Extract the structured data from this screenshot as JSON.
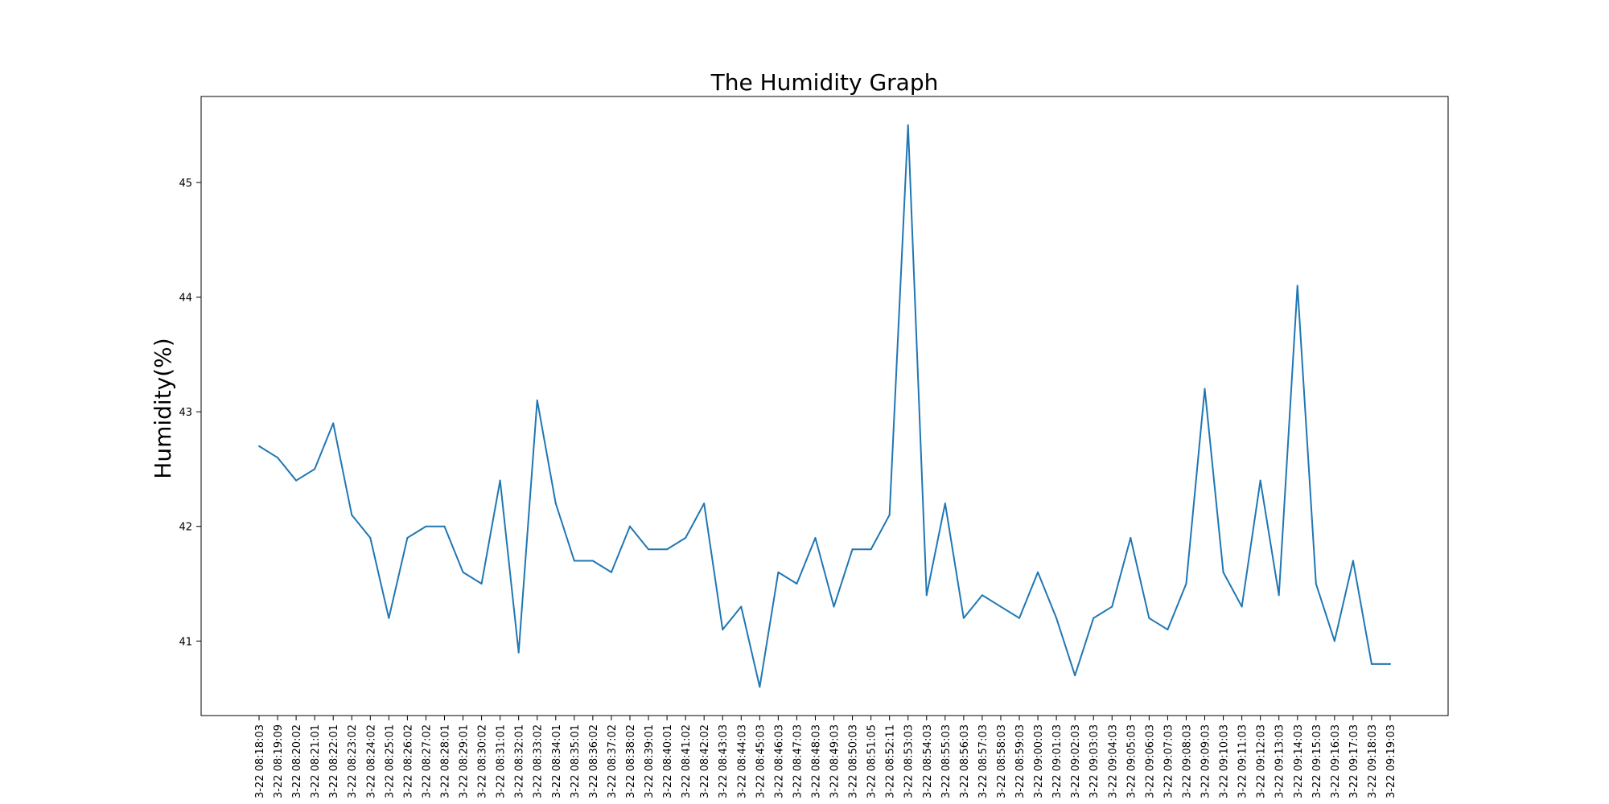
{
  "chart_data": {
    "type": "line",
    "title": "The Humidity Graph",
    "xlabel": "",
    "ylabel": "Humidity(%)",
    "ylim": [
      40.35,
      45.75
    ],
    "yticks": [
      41,
      42,
      43,
      44,
      45
    ],
    "grid": false,
    "legend": "none",
    "line_color": "#1f77b4",
    "x": [
      "3-22 08:18:03",
      "3-22 08:19:09",
      "3-22 08:20:02",
      "3-22 08:21:01",
      "3-22 08:22:01",
      "3-22 08:23:02",
      "3-22 08:24:02",
      "3-22 08:25:01",
      "3-22 08:26:02",
      "3-22 08:27:02",
      "3-22 08:28:01",
      "3-22 08:29:01",
      "3-22 08:30:02",
      "3-22 08:31:01",
      "3-22 08:32:01",
      "3-22 08:33:02",
      "3-22 08:34:01",
      "3-22 08:35:01",
      "3-22 08:36:02",
      "3-22 08:37:02",
      "3-22 08:38:02",
      "3-22 08:39:01",
      "3-22 08:40:01",
      "3-22 08:41:02",
      "3-22 08:42:02",
      "3-22 08:43:03",
      "3-22 08:44:03",
      "3-22 08:45:03",
      "3-22 08:46:03",
      "3-22 08:47:03",
      "3-22 08:48:03",
      "3-22 08:49:03",
      "3-22 08:50:03",
      "3-22 08:51:05",
      "3-22 08:52:11",
      "3-22 08:53:03",
      "3-22 08:54:03",
      "3-22 08:55:03",
      "3-22 08:56:03",
      "3-22 08:57:03",
      "3-22 08:58:03",
      "3-22 08:59:03",
      "3-22 09:00:03",
      "3-22 09:01:03",
      "3-22 09:02:03",
      "3-22 09:03:03",
      "3-22 09:04:03",
      "3-22 09:05:03",
      "3-22 09:06:03",
      "3-22 09:07:03",
      "3-22 09:08:03",
      "3-22 09:09:03",
      "3-22 09:10:03",
      "3-22 09:11:03",
      "3-22 09:12:03",
      "3-22 09:13:03",
      "3-22 09:14:03",
      "3-22 09:15:03",
      "3-22 09:16:03",
      "3-22 09:17:03",
      "3-22 09:18:03",
      "3-22 09:19:03"
    ],
    "values": [
      42.7,
      42.6,
      42.4,
      42.5,
      42.9,
      42.1,
      41.9,
      41.2,
      41.9,
      42.0,
      42.0,
      41.6,
      41.5,
      42.4,
      40.9,
      43.1,
      42.2,
      41.7,
      41.7,
      41.6,
      42.0,
      41.8,
      41.8,
      41.9,
      42.2,
      41.1,
      41.3,
      40.6,
      41.6,
      41.5,
      41.9,
      41.3,
      41.8,
      41.8,
      42.1,
      45.5,
      41.4,
      42.2,
      41.2,
      41.4,
      41.3,
      41.2,
      41.6,
      41.2,
      40.7,
      41.2,
      41.3,
      41.9,
      41.2,
      41.1,
      41.5,
      43.2,
      41.6,
      41.3,
      42.4,
      41.4,
      44.1,
      41.5,
      41.0,
      41.7,
      40.8,
      40.8
    ]
  }
}
